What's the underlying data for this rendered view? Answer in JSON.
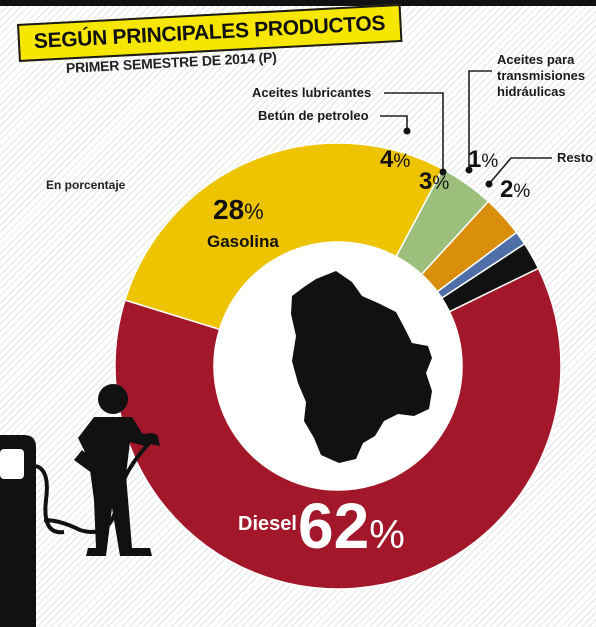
{
  "header": {
    "title": "SEGÚN PRINCIPALES PRODUCTOS",
    "subtitle": "PRIMER SEMESTRE DE 2014 (P)",
    "unit_note": "En porcentaje"
  },
  "chart_data": {
    "type": "pie",
    "title": "SEGÚN PRINCIPALES PRODUCTOS",
    "subtitle": "PRIMER SEMESTRE DE 2014 (P)",
    "unit": "En porcentaje",
    "slices": [
      {
        "label": "Diesel",
        "value": 62,
        "display": "62",
        "color": "#a2182a"
      },
      {
        "label": "Gasolina",
        "value": 28,
        "display": "28",
        "color": "#eec400"
      },
      {
        "label": "Aceites lubricantes",
        "value": 4,
        "display": "4",
        "color": "#9cc07c"
      },
      {
        "label": "Betún de petroleo",
        "value": 3,
        "display": "3",
        "color": "#d98f0c"
      },
      {
        "label": "Aceites para transmisiones hidráulicas",
        "value": 1,
        "display": "1",
        "color": "#4f6fa8"
      },
      {
        "label": "Resto",
        "value": 2,
        "display": "2",
        "color": "#111111"
      }
    ],
    "percent_symbol": "%"
  },
  "labels": {
    "lubricantes": "Aceites lubricantes",
    "betun": "Betún de petroleo",
    "transmisiones_l1": "Aceites para",
    "transmisiones_l2": "transmisiones",
    "transmisiones_l3": "hidráulicas",
    "resto": "Resto",
    "gasolina": "Gasolina",
    "diesel": "Diesel"
  },
  "icons": [
    "fuel-pump-icon",
    "person-refueling-icon",
    "bolivia-map-icon"
  ]
}
